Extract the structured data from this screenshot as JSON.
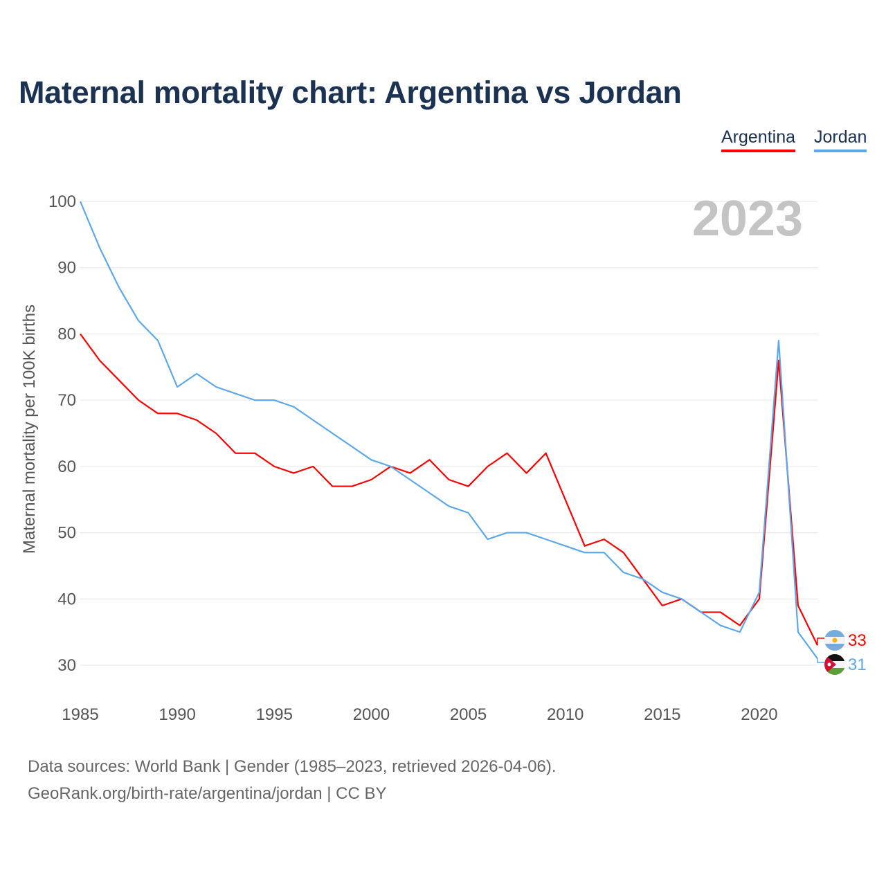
{
  "title": "Maternal mortality chart: Argentina vs Jordan",
  "source_line1": "Data sources: World Bank | Gender (1985–2023, retrieved 2026-04-06).",
  "source_line2": "GeoRank.org/birth-rate/argentina/jordan | CC BY",
  "chart_data": {
    "type": "line",
    "title": "Maternal mortality chart: Argentina vs Jordan",
    "xlabel": "",
    "ylabel": "Maternal mortality per 100K births",
    "year_label": "2023",
    "xlim": [
      1985,
      2023
    ],
    "ylim": [
      30,
      100
    ],
    "xticks": [
      1985,
      1990,
      1995,
      2000,
      2005,
      2010,
      2015,
      2020
    ],
    "yticks": [
      30,
      40,
      50,
      60,
      70,
      80,
      90,
      100
    ],
    "grid": true,
    "legend_position": "top-right",
    "x": [
      1985,
      1986,
      1987,
      1988,
      1989,
      1990,
      1991,
      1992,
      1993,
      1994,
      1995,
      1996,
      1997,
      1998,
      1999,
      2000,
      2001,
      2002,
      2003,
      2004,
      2005,
      2006,
      2007,
      2008,
      2009,
      2010,
      2011,
      2012,
      2013,
      2014,
      2015,
      2016,
      2017,
      2018,
      2019,
      2020,
      2021,
      2022,
      2023
    ],
    "series": [
      {
        "name": "Argentina",
        "color": "#ff0000",
        "end_label": "33",
        "flag": "argentina-flag",
        "values": [
          80,
          76,
          73,
          70,
          68,
          68,
          67,
          65,
          62,
          62,
          60,
          59,
          60,
          57,
          57,
          58,
          60,
          59,
          61,
          58,
          57,
          60,
          62,
          59,
          62,
          55,
          48,
          49,
          47,
          43,
          39,
          40,
          38,
          38,
          36,
          40,
          76,
          39,
          33
        ]
      },
      {
        "name": "Jordan",
        "color": "#5ca8ec",
        "end_label": "31",
        "flag": "jordan-flag",
        "values": [
          100,
          93,
          87,
          82,
          79,
          72,
          74,
          72,
          71,
          70,
          70,
          69,
          67,
          65,
          63,
          61,
          60,
          58,
          56,
          54,
          53,
          49,
          50,
          50,
          49,
          48,
          47,
          47,
          44,
          43,
          41,
          40,
          38,
          36,
          35,
          41,
          79,
          35,
          31
        ]
      }
    ]
  }
}
